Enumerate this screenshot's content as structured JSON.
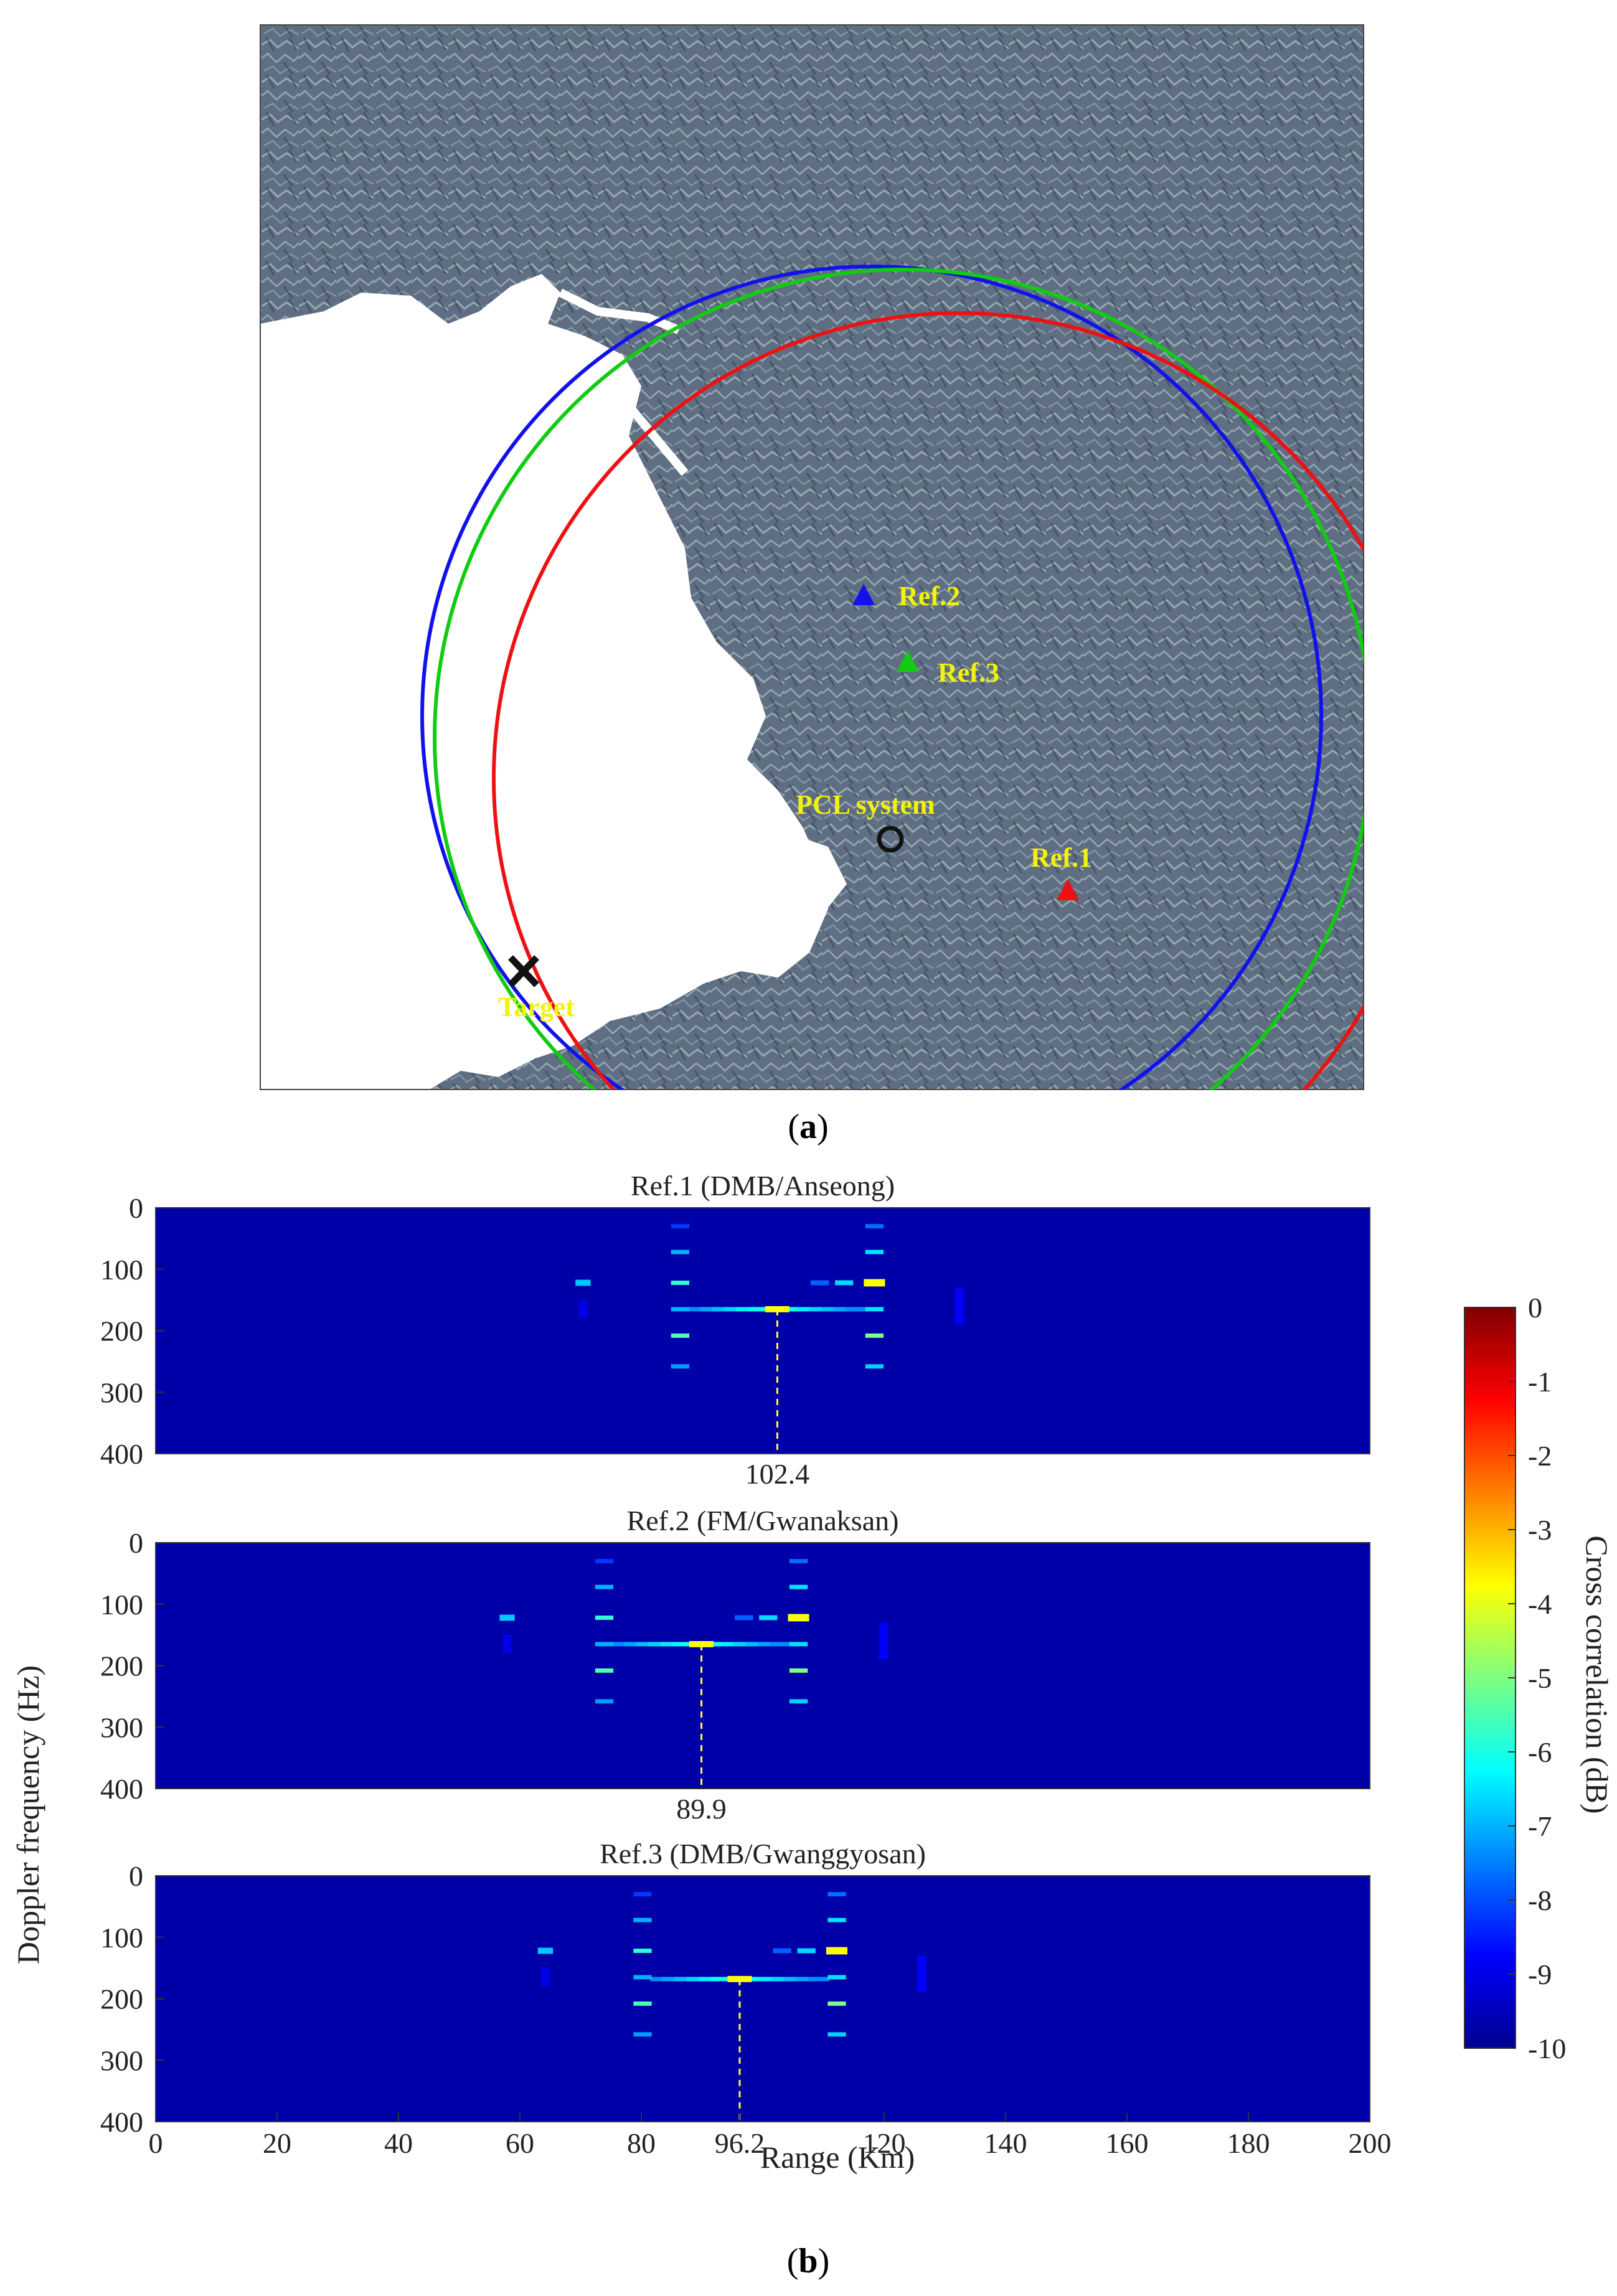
{
  "panel_a": {
    "caption_letter": "a",
    "labels": {
      "ref1": "Ref.1",
      "ref2": "Ref.2",
      "ref3": "Ref.3",
      "pcl": "PCL system",
      "target": "Target"
    },
    "colors": {
      "ref1": "#ee1111",
      "ref2": "#1111ee",
      "ref3": "#11cc11",
      "land": "#5f6e82",
      "water": "#ffffff",
      "label": "#f2f20a"
    }
  },
  "panel_b": {
    "caption_letter": "b",
    "xlabel": "Range (Km)",
    "ylabel": "Doppler frequency (Hz)",
    "colorbar_label": "Cross correlation (dB)",
    "colorbar_ticks": [
      "0",
      "-1",
      "-2",
      "-3",
      "-4",
      "-5",
      "-6",
      "-7",
      "-8",
      "-9",
      "-10"
    ]
  },
  "chart_data": [
    {
      "type": "heatmap",
      "title": "Ref.1 (DMB/Anseong)",
      "xlim": [
        0,
        200
      ],
      "ylim": [
        0,
        400
      ],
      "y_ticks": [
        "0",
        "100",
        "200",
        "300",
        "400"
      ],
      "marker_range": 102.4,
      "marker_label": "102.4",
      "peak_doppler": 165,
      "clim": [
        -10,
        0
      ]
    },
    {
      "type": "heatmap",
      "title": "Ref.2 (FM/Gwanaksan)",
      "xlim": [
        0,
        200
      ],
      "ylim": [
        0,
        400
      ],
      "y_ticks": [
        "0",
        "100",
        "200",
        "300",
        "400"
      ],
      "marker_range": 89.9,
      "marker_label": "89.9",
      "peak_doppler": 165,
      "clim": [
        -10,
        0
      ]
    },
    {
      "type": "heatmap",
      "title": "Ref.3 (DMB/Gwanggyosan)",
      "xlim": [
        0,
        200
      ],
      "ylim": [
        0,
        400
      ],
      "y_ticks": [
        "0",
        "100",
        "200",
        "300",
        "400"
      ],
      "x_ticks": [
        "0",
        "20",
        "40",
        "60",
        "80",
        "96.2",
        "120",
        "140",
        "160",
        "180",
        "200"
      ],
      "marker_range": 96.2,
      "marker_label": "96.2",
      "peak_doppler": 168,
      "clim": [
        -10,
        0
      ]
    }
  ]
}
